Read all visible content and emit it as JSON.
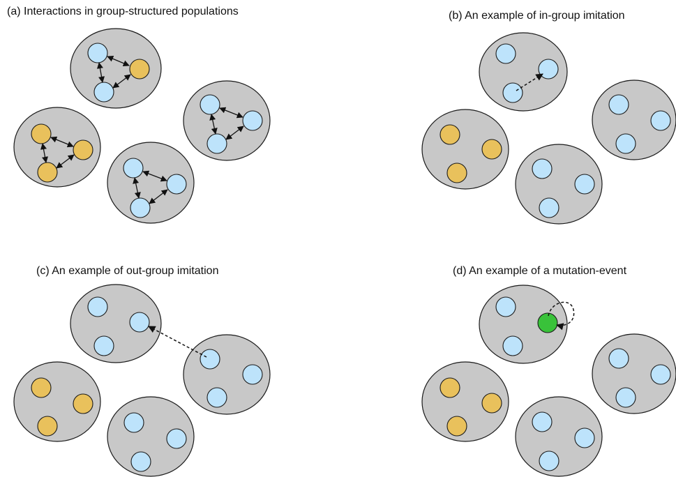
{
  "colors": {
    "group_fill": "#c8c8c8",
    "cooperator": "#bde3fb",
    "defector": "#e9c15c",
    "mutant": "#39c23a"
  },
  "panels": {
    "a": {
      "title": "(a) Interactions in group-structured populations"
    },
    "b": {
      "title": "(b) An example of in-group imitation"
    },
    "c": {
      "title": "(c) An example of out-group imitation"
    },
    "d": {
      "title": "(d) An example of a mutation-event"
    }
  }
}
